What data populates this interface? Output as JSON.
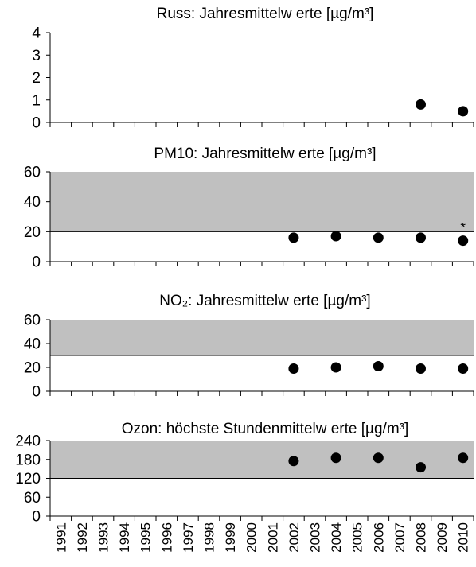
{
  "chart_data": [
    {
      "type": "scatter",
      "title": "Russ: Jahresmittelw erte [µg/m³]",
      "x": [
        2008,
        2010
      ],
      "values": [
        0.8,
        0.5
      ],
      "ylim": [
        0,
        4
      ],
      "yticks": [
        0,
        1,
        2,
        3,
        4
      ],
      "xlim": [
        1991,
        2010
      ],
      "band": null,
      "grid": false
    },
    {
      "type": "scatter",
      "title": "PM10: Jahresmittelw erte [µg/m³]",
      "x": [
        2002,
        2004,
        2006,
        2008,
        2010
      ],
      "values": [
        16,
        17,
        16,
        16,
        14
      ],
      "ylim": [
        0,
        60
      ],
      "yticks": [
        0,
        20,
        40,
        60
      ],
      "xlim": [
        1991,
        2010
      ],
      "band": [
        20,
        60
      ],
      "annotation": {
        "x": 2010,
        "text": "*"
      },
      "grid": false
    },
    {
      "type": "scatter",
      "title": "NO₂: Jahresmittelw erte [µg/m³]",
      "x": [
        2002,
        2004,
        2006,
        2008,
        2010
      ],
      "values": [
        19,
        20,
        21,
        19,
        19
      ],
      "ylim": [
        0,
        60
      ],
      "yticks": [
        0,
        20,
        40,
        60
      ],
      "xlim": [
        1991,
        2010
      ],
      "band": [
        30,
        60
      ],
      "grid": false
    },
    {
      "type": "scatter",
      "title": "Ozon: höchste Stundenmittelw erte [µg/m³]",
      "x": [
        2002,
        2004,
        2006,
        2008,
        2010
      ],
      "values": [
        175,
        185,
        185,
        155,
        185
      ],
      "ylim": [
        0,
        240
      ],
      "yticks": [
        0,
        60,
        120,
        180,
        240
      ],
      "xlim": [
        1991,
        2010
      ],
      "band": [
        120,
        240
      ],
      "grid": false
    }
  ],
  "x_tick_labels": [
    "1991",
    "1992",
    "1993",
    "1994",
    "1995",
    "1996",
    "1997",
    "1998",
    "1999",
    "2000",
    "2001",
    "2002",
    "2003",
    "2004",
    "2005",
    "2006",
    "2007",
    "2008",
    "2009",
    "2010"
  ],
  "colors": {
    "band": "#c0c0c0",
    "marker": "#000000",
    "axis": "#000000"
  }
}
